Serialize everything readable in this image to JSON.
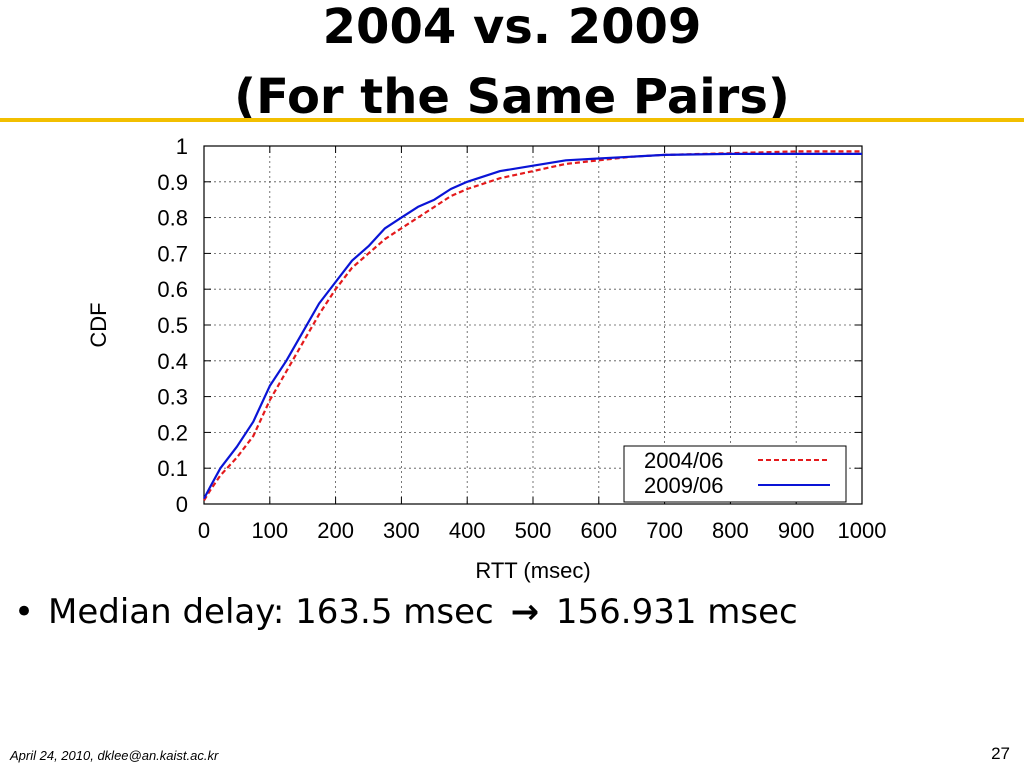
{
  "slide": {
    "title_line1": "2004 vs. 2009",
    "title_line2": "(For the Same Pairs)",
    "accent_color": "#f2bf00",
    "bullet": {
      "marker": "•",
      "text_before": "Median delay: 163.5 msec",
      "arrow": "→",
      "text_after": "156.931 msec"
    },
    "footer_left": "April 24, 2010, dklee@an.kaist.ac.kr",
    "page_number": "27"
  },
  "chart_data": {
    "type": "line",
    "title": "",
    "xlabel": "RTT (msec)",
    "ylabel": "CDF",
    "xlim": [
      0,
      1000
    ],
    "ylim": [
      0,
      1
    ],
    "x_ticks": [
      "0",
      "100",
      "200",
      "300",
      "400",
      "500",
      "600",
      "700",
      "800",
      "900",
      "1000"
    ],
    "y_ticks": [
      "0",
      "0.1",
      "0.2",
      "0.3",
      "0.4",
      "0.5",
      "0.6",
      "0.7",
      "0.8",
      "0.9",
      "1"
    ],
    "grid": true,
    "legend_position": "bottom-right",
    "series": [
      {
        "name": "2004/06",
        "color": "#e41a1c",
        "line_style": "dashed",
        "x": [
          0,
          10,
          25,
          50,
          75,
          100,
          125,
          150,
          175,
          200,
          225,
          250,
          275,
          300,
          325,
          350,
          375,
          400,
          450,
          500,
          550,
          600,
          650,
          700,
          800,
          900,
          1000
        ],
        "y": [
          0.01,
          0.04,
          0.08,
          0.13,
          0.19,
          0.29,
          0.37,
          0.45,
          0.53,
          0.6,
          0.66,
          0.7,
          0.74,
          0.77,
          0.8,
          0.83,
          0.86,
          0.88,
          0.91,
          0.93,
          0.95,
          0.96,
          0.97,
          0.975,
          0.98,
          0.985,
          0.985
        ]
      },
      {
        "name": "2009/06",
        "color": "#0a14d6",
        "line_style": "solid",
        "x": [
          0,
          10,
          25,
          50,
          75,
          100,
          125,
          150,
          175,
          200,
          225,
          250,
          275,
          300,
          325,
          350,
          375,
          400,
          450,
          500,
          550,
          600,
          650,
          700,
          800,
          900,
          1000
        ],
        "y": [
          0.015,
          0.05,
          0.1,
          0.16,
          0.23,
          0.33,
          0.4,
          0.48,
          0.56,
          0.62,
          0.68,
          0.72,
          0.77,
          0.8,
          0.83,
          0.85,
          0.88,
          0.9,
          0.93,
          0.945,
          0.96,
          0.965,
          0.97,
          0.975,
          0.978,
          0.978,
          0.978
        ]
      }
    ]
  }
}
